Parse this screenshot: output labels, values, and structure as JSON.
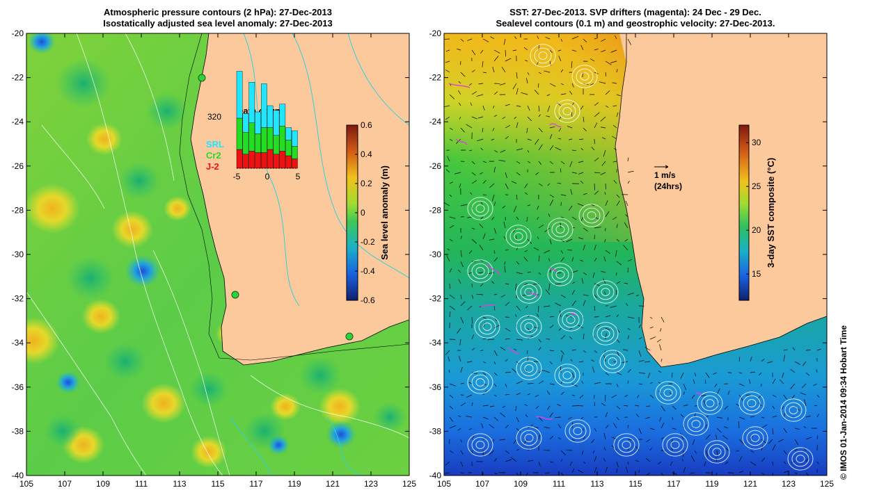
{
  "left_panel": {
    "title_line1": "Atmospheric pressure contours (2 hPa): 27-Dec-2013",
    "title_line2": "Isostatically adjusted sea level anomaly: 27-Dec-2013",
    "x_ticks": [
      "105",
      "107",
      "109",
      "111",
      "113",
      "115",
      "117",
      "119",
      "121",
      "123",
      "125"
    ],
    "y_ticks": [
      "-20",
      "-22",
      "-24",
      "-26",
      "-28",
      "-30",
      "-32",
      "-34",
      "-36",
      "-38",
      "-40"
    ],
    "colorbar": {
      "label": "Sea level anomaly (m)",
      "ticks": [
        "0.6",
        "0.4",
        "0.2",
        "0",
        "-0.2",
        "-0.4",
        "-0.6"
      ],
      "range": [
        -0.6,
        0.6
      ]
    },
    "inset": {
      "title": "Data count",
      "max_label": "320",
      "x_ticks": [
        "-5",
        "0",
        "5"
      ],
      "legend": [
        {
          "label": "SRL",
          "color": "#22e5ff"
        },
        {
          "label": "Cr2",
          "color": "#22dd22"
        },
        {
          "label": "J-2",
          "color": "#ee1111"
        }
      ],
      "bins": [
        -5,
        -4,
        -3,
        -2,
        -1,
        0,
        1,
        2,
        3,
        4
      ],
      "series": [
        {
          "name": "J-2",
          "values": [
            60,
            45,
            55,
            50,
            50,
            60,
            45,
            55,
            40,
            30
          ]
        },
        {
          "name": "Cr2",
          "values": [
            100,
            70,
            90,
            60,
            80,
            70,
            60,
            80,
            50,
            40
          ]
        },
        {
          "name": "SRL",
          "values": [
            150,
            60,
            130,
            70,
            140,
            70,
            80,
            70,
            40,
            50
          ]
        }
      ]
    }
  },
  "right_panel": {
    "title_line1": "SST: 27-Dec-2013. SVP drifters (magenta): 24 Dec - 29 Dec.",
    "title_line2": "Sealevel contours (0.1 m) and geostrophic velocity: 27-Dec-2013.",
    "x_ticks": [
      "105",
      "107",
      "109",
      "111",
      "113",
      "115",
      "117",
      "119",
      "121",
      "123",
      "125"
    ],
    "y_ticks": [
      "-20",
      "-22",
      "-24",
      "-26",
      "-28",
      "-30",
      "-32",
      "-34",
      "-36",
      "-38",
      "-40"
    ],
    "colorbar": {
      "label": "3-day SST composite (°C)",
      "ticks": [
        "30",
        "25",
        "20",
        "15"
      ],
      "range": [
        12,
        32
      ]
    },
    "scale_label_1": "1 m/s",
    "scale_label_2": "(24hrs)"
  },
  "credit": "© IMOS 01-Jan-2014 09:34 Hobart Time",
  "colors": {
    "land": "#fbc99c",
    "drifter": "#e040e0",
    "contour": "#ffffff"
  }
}
